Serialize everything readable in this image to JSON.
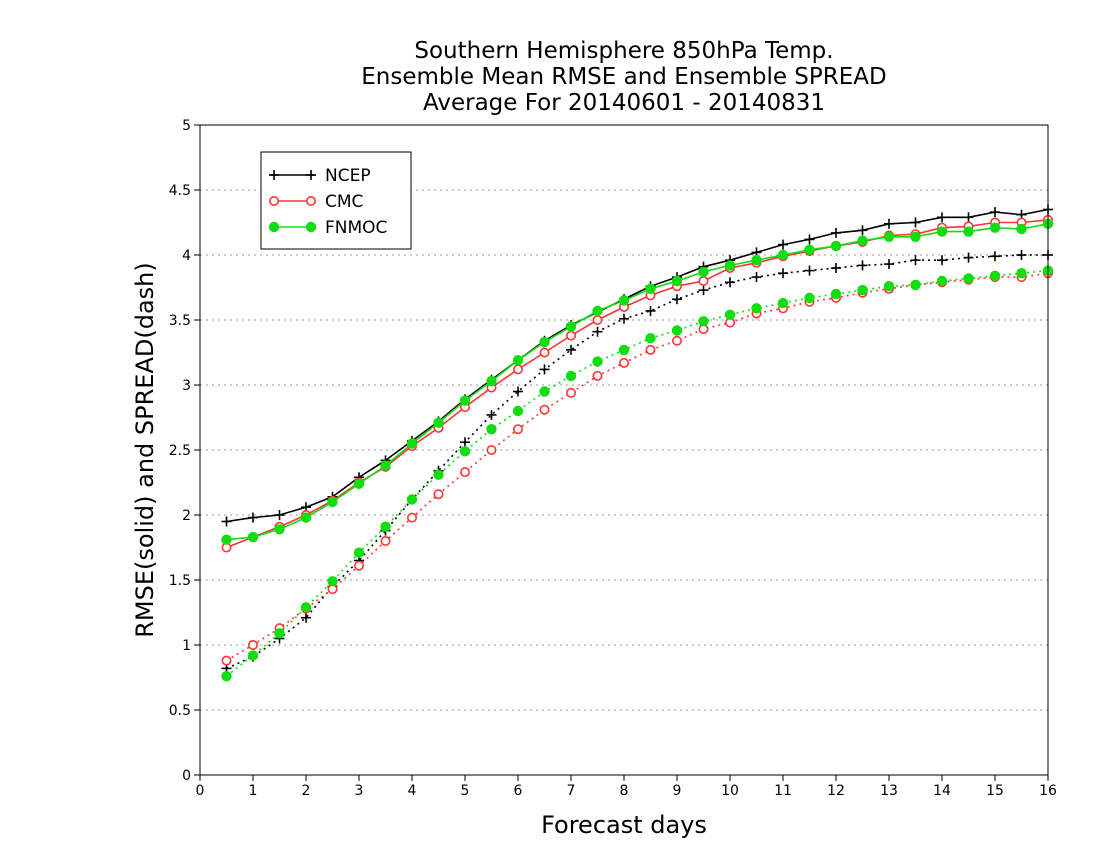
{
  "chart_data": {
    "type": "line",
    "title": [
      "Southern Hemisphere 850hPa Temp.",
      "Ensemble Mean RMSE and Ensemble SPREAD",
      "Average For 20140601 - 20140831"
    ],
    "xlabel": "Forecast days",
    "ylabel": "RMSE(solid) and SPREAD(dash)",
    "xlim": [
      0,
      16
    ],
    "ylim": [
      0,
      5
    ],
    "xticks": [
      "0",
      "1",
      "2",
      "3",
      "4",
      "5",
      "6",
      "7",
      "8",
      "9",
      "10",
      "11",
      "12",
      "13",
      "14",
      "15",
      "16"
    ],
    "yticks": [
      "0",
      "0.5",
      "1",
      "1.5",
      "2",
      "2.5",
      "3",
      "3.5",
      "4",
      "4.5",
      "5"
    ],
    "grid": "horizontal dotted",
    "legend_position": "top-left",
    "x": [
      0.5,
      1,
      1.5,
      2,
      2.5,
      3,
      3.5,
      4,
      4.5,
      5,
      5.5,
      6,
      6.5,
      7,
      7.5,
      8,
      8.5,
      9,
      9.5,
      10,
      10.5,
      11,
      11.5,
      12,
      12.5,
      13,
      13.5,
      14,
      14.5,
      15,
      15.5,
      16
    ],
    "series": [
      {
        "name": "NCEP",
        "color": "#000000",
        "marker": "plus",
        "rmse": [
          1.95,
          1.98,
          2.0,
          2.06,
          2.14,
          2.29,
          2.42,
          2.57,
          2.72,
          2.89,
          3.04,
          3.19,
          3.34,
          3.46,
          3.56,
          3.66,
          3.76,
          3.83,
          3.91,
          3.96,
          4.02,
          4.08,
          4.12,
          4.17,
          4.19,
          4.24,
          4.25,
          4.29,
          4.29,
          4.33,
          4.31,
          4.35
        ],
        "spread": [
          0.82,
          0.91,
          1.05,
          1.21,
          1.45,
          1.65,
          1.88,
          2.12,
          2.34,
          2.56,
          2.77,
          2.95,
          3.12,
          3.27,
          3.41,
          3.51,
          3.57,
          3.66,
          3.73,
          3.79,
          3.83,
          3.86,
          3.88,
          3.9,
          3.92,
          3.93,
          3.96,
          3.96,
          3.98,
          3.99,
          4.0,
          4.0
        ]
      },
      {
        "name": "CMC",
        "color": "#ff3333",
        "marker": "open-circle",
        "rmse": [
          1.75,
          1.83,
          1.91,
          2.0,
          2.11,
          2.25,
          2.37,
          2.53,
          2.67,
          2.83,
          2.98,
          3.12,
          3.25,
          3.38,
          3.5,
          3.6,
          3.69,
          3.76,
          3.8,
          3.9,
          3.94,
          3.99,
          4.03,
          4.07,
          4.1,
          4.15,
          4.16,
          4.21,
          4.22,
          4.25,
          4.25,
          4.27
        ],
        "spread": [
          0.88,
          1.0,
          1.13,
          1.28,
          1.43,
          1.61,
          1.8,
          1.98,
          2.16,
          2.33,
          2.5,
          2.66,
          2.81,
          2.94,
          3.07,
          3.17,
          3.27,
          3.34,
          3.43,
          3.48,
          3.55,
          3.59,
          3.64,
          3.67,
          3.71,
          3.74,
          3.77,
          3.79,
          3.81,
          3.83,
          3.83,
          3.86
        ]
      },
      {
        "name": "FNMOC",
        "color": "#11dd11",
        "marker": "filled-circle",
        "rmse": [
          1.81,
          1.83,
          1.89,
          1.98,
          2.1,
          2.24,
          2.38,
          2.55,
          2.71,
          2.88,
          3.03,
          3.19,
          3.33,
          3.45,
          3.57,
          3.65,
          3.74,
          3.8,
          3.87,
          3.92,
          3.96,
          4.0,
          4.04,
          4.07,
          4.11,
          4.14,
          4.14,
          4.18,
          4.18,
          4.21,
          4.2,
          4.24
        ],
        "spread": [
          0.76,
          0.92,
          1.09,
          1.29,
          1.49,
          1.71,
          1.91,
          2.12,
          2.31,
          2.49,
          2.66,
          2.8,
          2.95,
          3.07,
          3.18,
          3.27,
          3.36,
          3.42,
          3.49,
          3.54,
          3.59,
          3.63,
          3.67,
          3.7,
          3.73,
          3.76,
          3.77,
          3.8,
          3.82,
          3.84,
          3.86,
          3.88
        ]
      }
    ]
  }
}
